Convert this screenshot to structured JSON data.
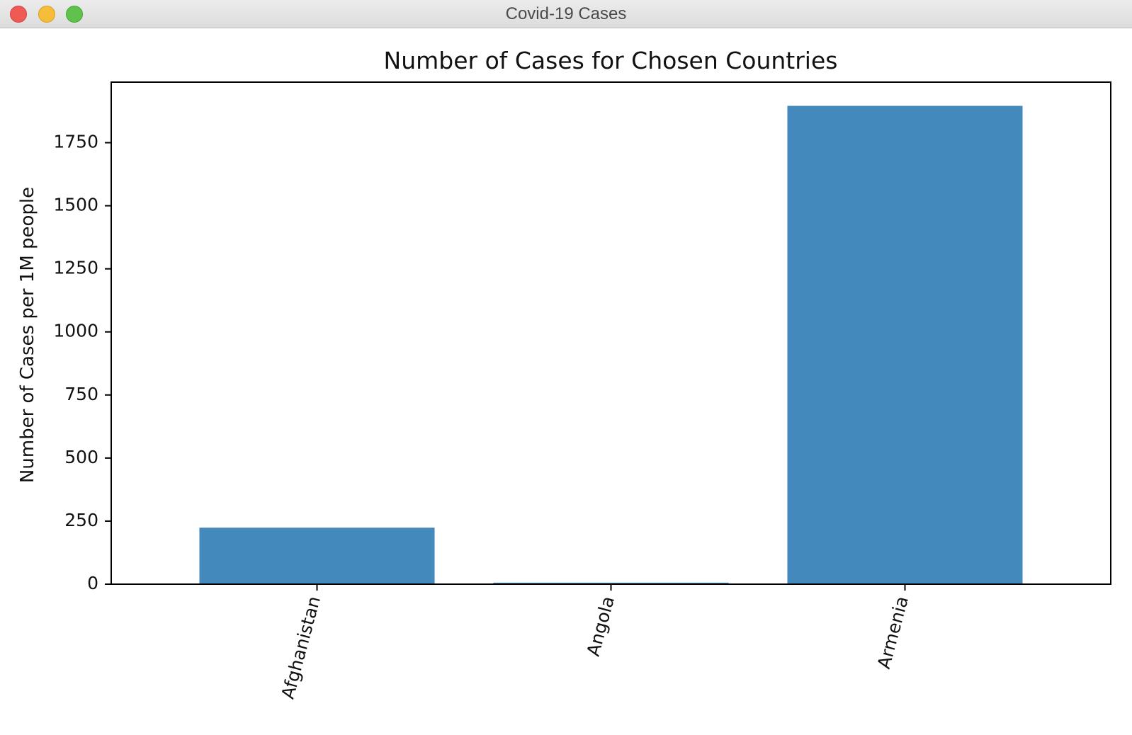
{
  "window": {
    "title": "Covid-19 Cases"
  },
  "chart_data": {
    "type": "bar",
    "title": "Number of Cases for Chosen Countries",
    "xlabel": "",
    "ylabel": "Number of Cases per 1M people",
    "categories": [
      "Afghanistan",
      "Angola",
      "Armenia"
    ],
    "values": [
      224,
      6,
      1896
    ],
    "ylim": [
      0,
      1990
    ],
    "yticks": [
      0,
      250,
      500,
      750,
      1000,
      1250,
      1500,
      1750
    ],
    "yticklabels": [
      "0",
      "250",
      "500",
      "750",
      "1000",
      "1250",
      "1500",
      "1750"
    ],
    "bar_color": "#4389bc",
    "grid": false,
    "x_tick_rotation_deg": 75
  }
}
